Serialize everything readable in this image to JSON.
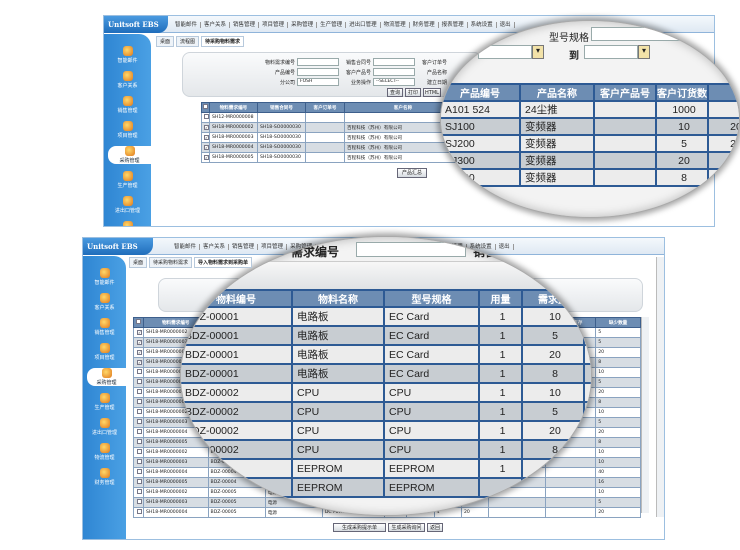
{
  "app": {
    "title": "Unitsoft EBS"
  },
  "nav": [
    "智能邮件",
    "客户关系",
    "销售管理",
    "项目管理",
    "采购管理",
    "生产管理",
    "进出口管理",
    "物流管理",
    "财务管理",
    "报表管理",
    "系统设置",
    "退出"
  ],
  "sidebar": [
    "智能邮件",
    "客户关系",
    "销售管理",
    "项目管理",
    "采购管理",
    "生产管理",
    "进出口管理",
    "物流管理",
    "财务管理"
  ],
  "sidebar_active": "采购管理",
  "top": {
    "tabs": [
      "桌面",
      "流程图",
      "待采购物料需求"
    ],
    "form": {
      "req_no_label": "物料需求编号",
      "sales_contract_label": "销售合同号",
      "cust_order_label": "客户订单号",
      "product_no_label": "产品编号",
      "cust_product_label": "客户产品号",
      "product_name_label": "产品名称",
      "company_label": "分公司",
      "company_value": "FOSH",
      "biz_op_label": "业务操作",
      "biz_op_value": "--SELECT--",
      "created_label": "建立日期",
      "model_label": "型号规格",
      "to_label": "到",
      "query_button": "查询",
      "print_button": "打印",
      "html_button": "HTML"
    },
    "table": {
      "headers": [
        "物料需求编号",
        "销售合同号",
        "客户订单号",
        "客户名称"
      ],
      "rows": [
        {
          "checked": false,
          "cells": [
            "SH12-MR0000008",
            "",
            "",
            ""
          ]
        },
        {
          "checked": true,
          "cells": [
            "SH18-MR0000002",
            "SH18-SO0000030",
            "",
            "百程科技（苏州）有限公司"
          ]
        },
        {
          "checked": true,
          "cells": [
            "SH18-MR0000003",
            "SH18-SO0000030",
            "",
            "百程科技（苏州）有限公司"
          ]
        },
        {
          "checked": true,
          "cells": [
            "SH18-MR0000004",
            "SH18-SO0000030",
            "",
            "百程科技（苏州）有限公司"
          ]
        },
        {
          "checked": true,
          "cells": [
            "SH18-MR0000005",
            "SH18-SO0000030",
            "",
            "百程科技（苏州）有限公司"
          ]
        }
      ]
    },
    "summary_button": "产品汇总",
    "magnified": {
      "headers": [
        "产品编号",
        "产品名称",
        "客户产品号",
        "客户订货数",
        ""
      ],
      "rows": [
        [
          "A101 524",
          "24尘推",
          "",
          "1000",
          ""
        ],
        [
          "SJ100",
          "变频器",
          "",
          "10",
          "20"
        ],
        [
          "SJ200",
          "变频器",
          "",
          "5",
          "20"
        ],
        [
          "SJ300",
          "变频器",
          "",
          "20",
          "2"
        ],
        [
          "SJ700",
          "变频器",
          "",
          "8",
          ""
        ]
      ]
    }
  },
  "bottom": {
    "tabs": [
      "桌面",
      "待采购物料需求",
      "导入物料需求到采购单"
    ],
    "req_no_label": "需求编号",
    "sales_label": "销售",
    "table": {
      "headers": [
        "物料需求编号",
        "物料编号",
        "物料名称",
        "型号规格",
        "用量",
        "需求量",
        "",
        "",
        "入库",
        "不考虑库存",
        "缺少数量"
      ],
      "rows": [
        {
          "checked": true,
          "cells": [
            "SH18-MR0000002",
            "BDZ-00001",
            "电路板",
            "EC Card",
            "1",
            "10",
            "",
            "",
            "",
            "",
            "5"
          ]
        },
        {
          "checked": true,
          "cells": [
            "SH18-MR0000003",
            "BDZ-00001",
            "电路板",
            "EC Card",
            "1",
            "5",
            "",
            "",
            "",
            "",
            "5"
          ]
        },
        {
          "checked": true,
          "cells": [
            "SH18-MR0000004",
            "BDZ-00001",
            "电路板",
            "EC Card",
            "1",
            "20",
            "",
            "",
            "",
            "",
            "20"
          ]
        },
        {
          "checked": true,
          "cells": [
            "SH18-MR0000005",
            "BDZ-00001",
            "电路板",
            "EC Card",
            "1",
            "8",
            "",
            "",
            "",
            "",
            "8"
          ]
        },
        {
          "checked": false,
          "cells": [
            "SH18-MR0000002",
            "BDZ-00002",
            "CPU",
            "CPU",
            "1",
            "10",
            "",
            "",
            "",
            "",
            "10"
          ]
        },
        {
          "checked": false,
          "cells": [
            "SH18-MR0000003",
            "BDZ-00002",
            "CPU",
            "CPU",
            "1",
            "5",
            "",
            "",
            "",
            "",
            "5"
          ]
        },
        {
          "checked": false,
          "cells": [
            "SH18-MR0000004",
            "BDZ-00002",
            "CPU",
            "CPU",
            "1",
            "20",
            "",
            "",
            "",
            "",
            "20"
          ]
        },
        {
          "checked": false,
          "cells": [
            "SH18-MR0000005",
            "BDZ-00002",
            "CPU",
            "CPU",
            "1",
            "8",
            "",
            "",
            "",
            "",
            "8"
          ]
        },
        {
          "checked": false,
          "cells": [
            "SH18-MR0000002",
            "BDZ-00003",
            "EEPROM",
            "EEPROM",
            "1",
            "10",
            "",
            "",
            "",
            "",
            "10"
          ]
        },
        {
          "checked": false,
          "cells": [
            "SH18-MR0000003",
            "BDZ-00003",
            "EEPROM",
            "EEPROM",
            "1",
            "5",
            "",
            "",
            "",
            "",
            "5"
          ]
        },
        {
          "checked": false,
          "cells": [
            "SH18-MR0000004",
            "BDZ-00003",
            "EEPROM",
            "EEPROM",
            "1",
            "20",
            "",
            "",
            "",
            "",
            "20"
          ]
        },
        {
          "checked": false,
          "cells": [
            "SH18-MR0000005",
            "BDZ-00003",
            "EEPROM",
            "EEPROM",
            "1",
            "8",
            "",
            "",
            "",
            "",
            "8"
          ]
        },
        {
          "checked": false,
          "cells": [
            "SH18-MR0000002",
            "BDZ-00004",
            "",
            "",
            "",
            "",
            "",
            "36",
            "",
            "",
            "10"
          ]
        },
        {
          "checked": false,
          "cells": [
            "SH18-MR0000003",
            "BDZ-00004",
            "",
            "",
            "",
            "",
            "",
            "36",
            "",
            "",
            "10"
          ]
        },
        {
          "checked": false,
          "cells": [
            "SH18-MR0000004",
            "BDZ-00004",
            "指示灯",
            "",
            "",
            "",
            "",
            "76",
            "",
            "",
            "40"
          ]
        },
        {
          "checked": false,
          "cells": [
            "SH18-MR0000005",
            "BDZ-00004",
            "指示灯",
            "",
            "4",
            "",
            "18",
            "94",
            "",
            "",
            "16"
          ]
        },
        {
          "checked": false,
          "cells": [
            "SH18-MR0000002",
            "BDZ-00005",
            "电源",
            "DC Power 5V 50W",
            "1",
            "",
            "4",
            "14",
            "",
            "",
            "10"
          ]
        },
        {
          "checked": false,
          "cells": [
            "SH18-MR0000003",
            "BDZ-00005",
            "电源",
            "DC Power 5V 50W",
            "1",
            "",
            "4",
            "19",
            "",
            "",
            "5"
          ]
        },
        {
          "checked": false,
          "cells": [
            "SH18-MR0000004",
            "BDZ-00005",
            "电源",
            "DC Power 5V 50W",
            "1",
            "",
            "4",
            "20",
            "",
            "",
            "20"
          ]
        }
      ]
    },
    "magnified": {
      "headers": [
        "物料编号",
        "物料名称",
        "型号规格",
        "用量",
        "需求量",
        ""
      ],
      "rows": [
        [
          "BDZ-00001",
          "电路板",
          "EC Card",
          "1",
          "10",
          ""
        ],
        [
          "BDZ-00001",
          "电路板",
          "EC Card",
          "1",
          "5",
          ""
        ],
        [
          "BDZ-00001",
          "电路板",
          "EC Card",
          "1",
          "20",
          ""
        ],
        [
          "BDZ-00001",
          "电路板",
          "EC Card",
          "1",
          "8",
          ""
        ],
        [
          "BDZ-00002",
          "CPU",
          "CPU",
          "1",
          "10",
          ""
        ],
        [
          "BDZ-00002",
          "CPU",
          "CPU",
          "1",
          "5",
          ""
        ],
        [
          "BDZ-00002",
          "CPU",
          "CPU",
          "1",
          "20",
          ""
        ],
        [
          "BDZ-00002",
          "CPU",
          "CPU",
          "1",
          "8",
          ""
        ],
        [
          "",
          "EEPROM",
          "EEPROM",
          "1",
          "",
          ""
        ],
        [
          "",
          "EEPROM",
          "EEPROM",
          "",
          "",
          ""
        ]
      ]
    },
    "buttons": {
      "gen_hint": "生成采购提示单",
      "gen_inquiry": "生成采购询问",
      "back": "返回"
    }
  },
  "colors": {
    "header_blue": "#1f6dbb",
    "table_header": "#6d8db3",
    "border_blue": "#2d5a94"
  }
}
